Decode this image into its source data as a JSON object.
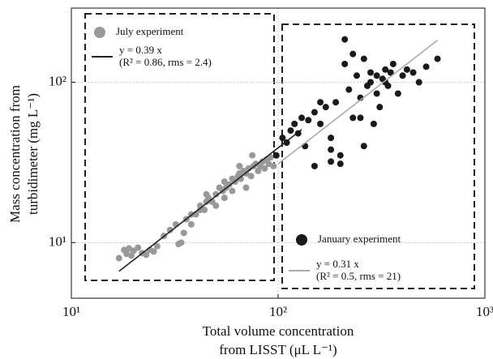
{
  "chart_data": {
    "type": "scatter",
    "xlabel": [
      "Total volume concentration",
      "from LISST (μL L⁻¹)"
    ],
    "ylabel": [
      "Mass concentration from",
      "turbidimeter (mg L⁻¹)"
    ],
    "log_x": true,
    "log_y": true,
    "grid": true,
    "xlim": [
      10,
      1000
    ],
    "ylim": [
      4.5,
      290
    ],
    "xticks": [
      {
        "value": 10,
        "label": "10¹"
      },
      {
        "value": 100,
        "label": "10²"
      },
      {
        "value": 1000,
        "label": "10³"
      }
    ],
    "yticks": [
      {
        "value": 10,
        "label": "10¹"
      },
      {
        "value": 100,
        "label": "10²"
      }
    ],
    "series": [
      {
        "name": "July experiment",
        "mode": "markers",
        "color": "#999999",
        "x": [
          17,
          18,
          18.5,
          19,
          19.5,
          20,
          21,
          22,
          23,
          24,
          25,
          26,
          28,
          30,
          32,
          34,
          36,
          38,
          40,
          42,
          44,
          45,
          46,
          48,
          50,
          52,
          54,
          55,
          56,
          58,
          60,
          62,
          64,
          65,
          66,
          68,
          70,
          72,
          74,
          76,
          78,
          80,
          82,
          84,
          86,
          88,
          90,
          92,
          95,
          50,
          55,
          60,
          45,
          70,
          75,
          38,
          42,
          33,
          35,
          65
        ],
        "values": [
          8.0,
          9.0,
          8.5,
          9.2,
          8.3,
          8.9,
          9.3,
          8.6,
          8.4,
          9.0,
          8.8,
          9.5,
          11,
          12,
          13,
          10,
          14,
          15,
          15,
          17,
          16,
          18,
          19,
          18,
          20,
          22,
          21,
          24,
          22,
          23,
          25,
          24,
          26,
          27,
          25,
          28,
          27,
          29,
          26,
          30,
          31,
          28,
          30,
          32,
          29,
          33,
          31,
          34,
          30,
          17,
          19,
          21,
          20,
          22,
          35,
          13,
          16,
          9.8,
          11.5,
          30
        ]
      },
      {
        "name": "y = 0.39 x",
        "note": "(R² = 0.86, rms = 2.4)",
        "mode": "line",
        "color": "#222222",
        "x": [
          17,
          130
        ],
        "values": [
          6.63,
          50.7
        ]
      },
      {
        "name": "January experiment",
        "mode": "markers",
        "color": "#1a1a1a",
        "x": [
          98,
          105,
          110,
          115,
          120,
          125,
          130,
          135,
          140,
          150,
          160,
          170,
          180,
          190,
          200,
          210,
          220,
          230,
          240,
          250,
          260,
          270,
          280,
          290,
          300,
          310,
          320,
          330,
          340,
          350,
          360,
          380,
          400,
          420,
          450,
          480,
          520,
          590,
          150,
          180,
          200,
          230,
          260,
          300,
          330,
          210,
          180,
          160,
          250,
          280
        ],
        "values": [
          35,
          45,
          42,
          50,
          55,
          48,
          60,
          40,
          58,
          65,
          55,
          70,
          38,
          75,
          35,
          185,
          90,
          60,
          110,
          80,
          140,
          95,
          100,
          55,
          110,
          70,
          105,
          120,
          95,
          115,
          130,
          85,
          110,
          120,
          115,
          100,
          125,
          140,
          30,
          45,
          31,
          150,
          40,
          85,
          100,
          130,
          32,
          75,
          60,
          115
        ]
      },
      {
        "name": "y = 0.31 x",
        "note": "(R² = 0.5, rms = 21)",
        "mode": "line",
        "color": "#aaaaaa",
        "x": [
          100,
          590
        ],
        "values": [
          31,
          182.9
        ]
      }
    ]
  }
}
